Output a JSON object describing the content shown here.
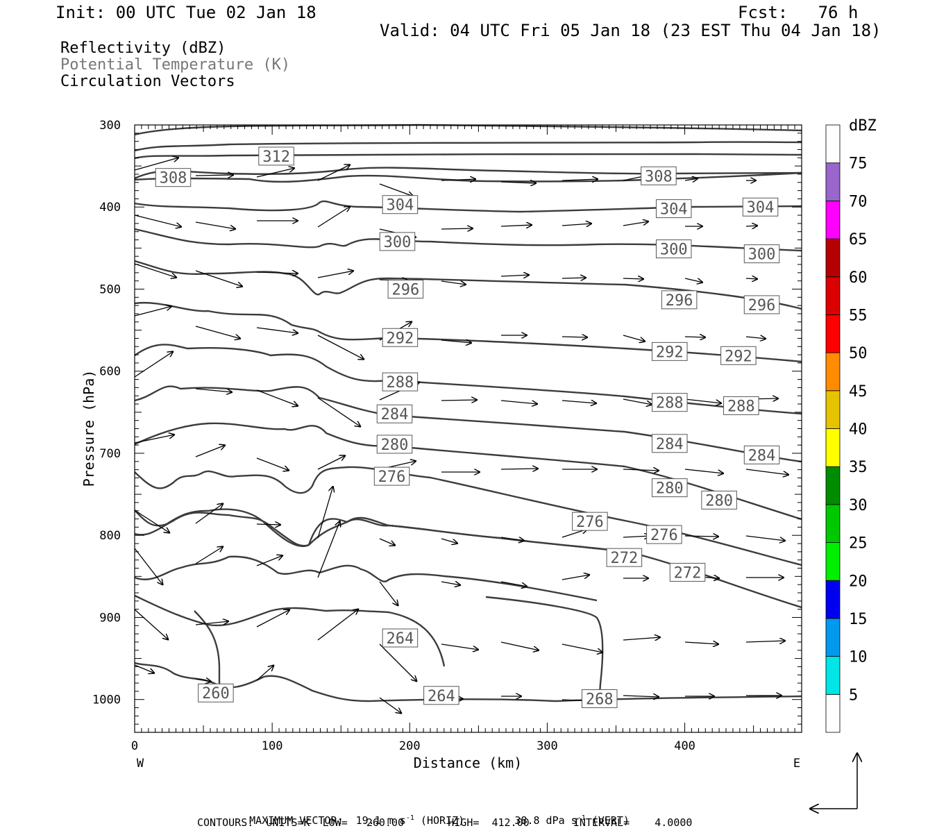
{
  "header": {
    "init": "Init: 00 UTC Tue 02 Jan 18",
    "fcst": "Fcst:   76 h",
    "valid": "Valid: 04 UTC Fri 05 Jan 18 (23 EST Thu 04 Jan 18)",
    "fields": [
      "Reflectivity (dBZ)",
      "Potential Temperature (K)",
      "Circulation Vectors"
    ]
  },
  "footer": {
    "line1_a": "MAXIMUM VECTOR:  19.1 m s",
    "line1_b": " (HORIZ)        38.8 dPa s",
    "line1_c": " (VERT)",
    "sup": "-1",
    "line2": "CONTOURS:  UNITS=K  LOW=   260.00       HIGH=  412.00       INTERVAL=    4.0000"
  },
  "colors": {
    "contour": "#3c3c3c",
    "vector": "#000000",
    "label_gray": "#777777"
  },
  "chart_data": {
    "type": "cross-section",
    "xlabel": "Distance (km)",
    "ylabel": "Pressure (hPa)",
    "xlim": [
      0,
      485
    ],
    "ylim": [
      300,
      1040
    ],
    "x_ticks": [
      0,
      100,
      200,
      300,
      400
    ],
    "y_ticks": [
      300,
      400,
      500,
      600,
      700,
      800,
      900,
      1000
    ],
    "west_label": "W",
    "east_label": "E",
    "colorbar": {
      "title": "dBZ",
      "levels": [
        5,
        10,
        15,
        20,
        25,
        30,
        35,
        40,
        45,
        50,
        55,
        60,
        65,
        70,
        75
      ],
      "colors": [
        "#ffffff",
        "#00e6e6",
        "#0099ee",
        "#0000f0",
        "#00ee00",
        "#00c800",
        "#008c00",
        "#ffff00",
        "#e6c300",
        "#ff8c00",
        "#ff0000",
        "#dc0000",
        "#b40000",
        "#ff00ff",
        "#9966cc",
        "#ffffff"
      ]
    },
    "contour_labels": [
      {
        "text": "312",
        "x": 103,
        "p": 338
      },
      {
        "text": "308",
        "x": 28,
        "p": 364
      },
      {
        "text": "308",
        "x": 381,
        "p": 362
      },
      {
        "text": "304",
        "x": 193,
        "p": 397
      },
      {
        "text": "304",
        "x": 392,
        "p": 402
      },
      {
        "text": "304",
        "x": 455,
        "p": 400
      },
      {
        "text": "300",
        "x": 191,
        "p": 442
      },
      {
        "text": "300",
        "x": 392,
        "p": 451
      },
      {
        "text": "300",
        "x": 456,
        "p": 457
      },
      {
        "text": "296",
        "x": 197,
        "p": 500
      },
      {
        "text": "296",
        "x": 396,
        "p": 513
      },
      {
        "text": "296",
        "x": 456,
        "p": 519
      },
      {
        "text": "292",
        "x": 193,
        "p": 559
      },
      {
        "text": "292",
        "x": 389,
        "p": 576
      },
      {
        "text": "292",
        "x": 439,
        "p": 581
      },
      {
        "text": "288",
        "x": 193,
        "p": 613
      },
      {
        "text": "288",
        "x": 389,
        "p": 638
      },
      {
        "text": "288",
        "x": 441,
        "p": 642
      },
      {
        "text": "284",
        "x": 189,
        "p": 652
      },
      {
        "text": "284",
        "x": 389,
        "p": 688
      },
      {
        "text": "284",
        "x": 456,
        "p": 702
      },
      {
        "text": "280",
        "x": 189,
        "p": 689
      },
      {
        "text": "280",
        "x": 389,
        "p": 742
      },
      {
        "text": "280",
        "x": 425,
        "p": 757
      },
      {
        "text": "276",
        "x": 187,
        "p": 728
      },
      {
        "text": "276",
        "x": 331,
        "p": 783
      },
      {
        "text": "276",
        "x": 385,
        "p": 799
      },
      {
        "text": "272",
        "x": 356,
        "p": 827
      },
      {
        "text": "272",
        "x": 402,
        "p": 845
      },
      {
        "text": "264",
        "x": 193,
        "p": 925
      },
      {
        "text": "264",
        "x": 223,
        "p": 995
      },
      {
        "text": "260",
        "x": 59,
        "p": 992
      },
      {
        "text": "268",
        "x": 338,
        "p": 999
      }
    ]
  }
}
